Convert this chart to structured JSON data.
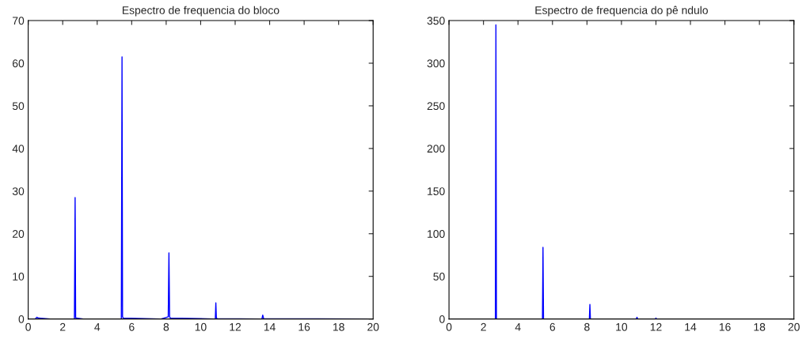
{
  "chart_data": [
    {
      "type": "line",
      "title": "Espectro de frequencia do bloco",
      "xlim": [
        0,
        20
      ],
      "ylim": [
        0,
        70
      ],
      "xticks": [
        0,
        2,
        4,
        6,
        8,
        10,
        12,
        14,
        16,
        18,
        20
      ],
      "yticks": [
        0,
        10,
        20,
        30,
        40,
        50,
        60,
        70
      ],
      "grid": false,
      "legend": false,
      "marker": "none",
      "line_style": "solid",
      "series": [
        {
          "color": "#0000ff",
          "x": [
            0,
            0.4,
            0.5,
            0.6,
            1.3,
            2.68,
            2.72,
            2.75,
            2.79,
            3.2,
            5.4,
            5.44,
            5.47,
            5.52,
            7.7,
            8.12,
            8.16,
            8.2,
            8.25,
            10.85,
            10.88,
            10.91,
            10.95,
            13.55,
            13.6,
            13.65,
            20
          ],
          "values": [
            0,
            0,
            0.4,
            0.2,
            0,
            0,
            28.5,
            0.3,
            0.2,
            0,
            0,
            61.5,
            0.5,
            0.2,
            0,
            0.5,
            15.5,
            0.5,
            0.2,
            0,
            3.8,
            0.3,
            0.1,
            0,
            0.9,
            0.1,
            0
          ]
        }
      ]
    },
    {
      "type": "line",
      "title": "Espectro de frequencia do pê ndulo",
      "xlim": [
        0,
        20
      ],
      "ylim": [
        0,
        350
      ],
      "xticks": [
        0,
        2,
        4,
        6,
        8,
        10,
        12,
        14,
        16,
        18,
        20
      ],
      "yticks": [
        0,
        50,
        100,
        150,
        200,
        250,
        300,
        350
      ],
      "grid": false,
      "legend": false,
      "marker": "none",
      "line_style": "solid",
      "series": [
        {
          "color": "#0000ff",
          "x": [
            0,
            2.69,
            2.72,
            2.75,
            5.42,
            5.45,
            5.48,
            8.14,
            8.17,
            8.2,
            10.86,
            10.9,
            10.94,
            11.96,
            12.0,
            12.04,
            20
          ],
          "values": [
            0,
            0,
            345,
            0,
            0,
            84,
            0,
            0,
            17,
            0,
            0,
            2,
            0,
            0,
            1,
            0,
            0
          ]
        }
      ]
    }
  ]
}
